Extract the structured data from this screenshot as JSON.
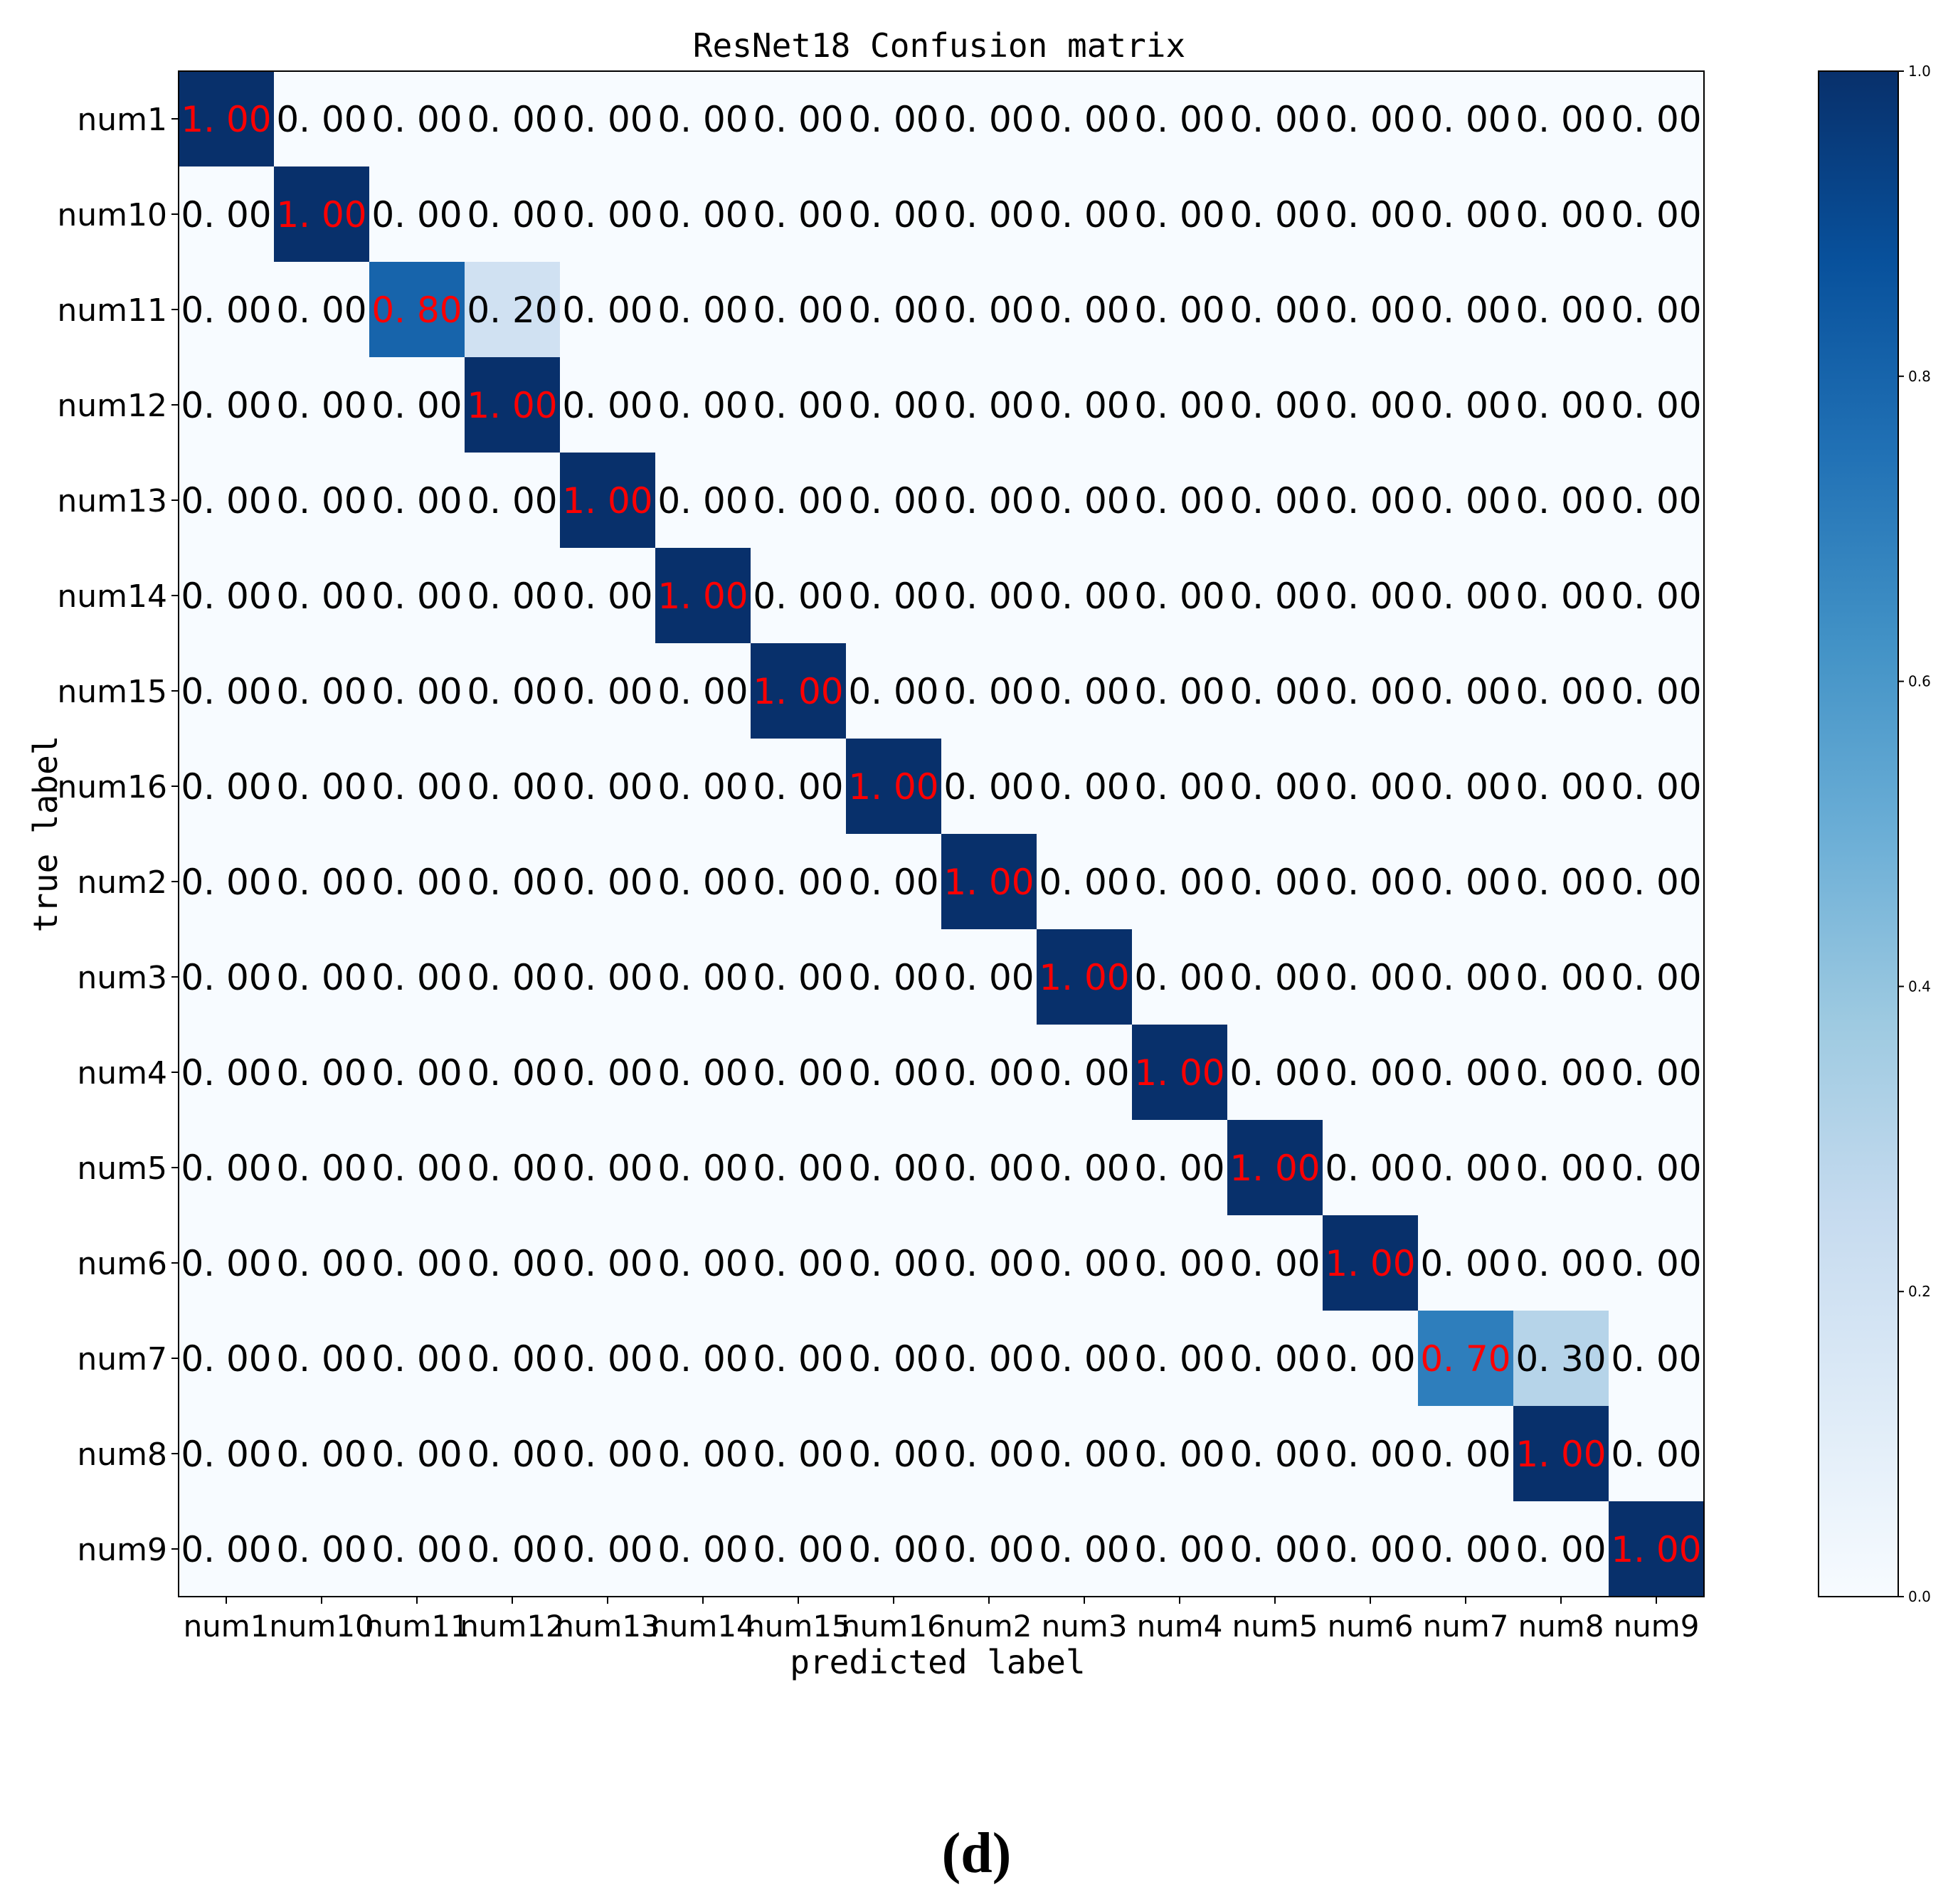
{
  "caption": "(d)",
  "chart_data": {
    "type": "heatmap",
    "title": "ResNet18 Confusion matrix",
    "xlabel": "predicted label",
    "ylabel": "true label",
    "x_categories": [
      "num1",
      "num10",
      "num11",
      "num12",
      "num13",
      "num14",
      "num15",
      "num16",
      "num2",
      "num3",
      "num4",
      "num5",
      "num6",
      "num7",
      "num8",
      "num9"
    ],
    "y_categories": [
      "num1",
      "num10",
      "num11",
      "num12",
      "num13",
      "num14",
      "num15",
      "num16",
      "num2",
      "num3",
      "num4",
      "num5",
      "num6",
      "num7",
      "num8",
      "num9"
    ],
    "values": [
      [
        1.0,
        0,
        0,
        0,
        0,
        0,
        0,
        0,
        0,
        0,
        0,
        0,
        0,
        0,
        0,
        0
      ],
      [
        0,
        1.0,
        0,
        0,
        0,
        0,
        0,
        0,
        0,
        0,
        0,
        0,
        0,
        0,
        0,
        0
      ],
      [
        0,
        0,
        0.8,
        0.2,
        0,
        0,
        0,
        0,
        0,
        0,
        0,
        0,
        0,
        0,
        0,
        0
      ],
      [
        0,
        0,
        0,
        1.0,
        0,
        0,
        0,
        0,
        0,
        0,
        0,
        0,
        0,
        0,
        0,
        0
      ],
      [
        0,
        0,
        0,
        0,
        1.0,
        0,
        0,
        0,
        0,
        0,
        0,
        0,
        0,
        0,
        0,
        0
      ],
      [
        0,
        0,
        0,
        0,
        0,
        1.0,
        0,
        0,
        0,
        0,
        0,
        0,
        0,
        0,
        0,
        0
      ],
      [
        0,
        0,
        0,
        0,
        0,
        0,
        1.0,
        0,
        0,
        0,
        0,
        0,
        0,
        0,
        0,
        0
      ],
      [
        0,
        0,
        0,
        0,
        0,
        0,
        0,
        1.0,
        0,
        0,
        0,
        0,
        0,
        0,
        0,
        0
      ],
      [
        0,
        0,
        0,
        0,
        0,
        0,
        0,
        0,
        1.0,
        0,
        0,
        0,
        0,
        0,
        0,
        0
      ],
      [
        0,
        0,
        0,
        0,
        0,
        0,
        0,
        0,
        0,
        1.0,
        0,
        0,
        0,
        0,
        0,
        0
      ],
      [
        0,
        0,
        0,
        0,
        0,
        0,
        0,
        0,
        0,
        0,
        1.0,
        0,
        0,
        0,
        0,
        0
      ],
      [
        0,
        0,
        0,
        0,
        0,
        0,
        0,
        0,
        0,
        0,
        0,
        1.0,
        0,
        0,
        0,
        0
      ],
      [
        0,
        0,
        0,
        0,
        0,
        0,
        0,
        0,
        0,
        0,
        0,
        0,
        1.0,
        0,
        0,
        0
      ],
      [
        0,
        0,
        0,
        0,
        0,
        0,
        0,
        0,
        0,
        0,
        0,
        0,
        0,
        0.7,
        0.3,
        0
      ],
      [
        0,
        0,
        0,
        0,
        0,
        0,
        0,
        0,
        0,
        0,
        0,
        0,
        0,
        0,
        1.0,
        0
      ],
      [
        0,
        0,
        0,
        0,
        0,
        0,
        0,
        0,
        0,
        0,
        0,
        0,
        0,
        0,
        0,
        1.0
      ]
    ],
    "value_format": "0. 00",
    "colormap": "Blues",
    "vmin": 0.0,
    "vmax": 1.0,
    "colorbar_ticks": [
      "0.0",
      "0.2",
      "0.4",
      "0.6",
      "0.8",
      "1.0"
    ],
    "label_color_diagonal": "#ff0000",
    "label_color_default": "#000000",
    "grid": false,
    "legend": "colorbar-right"
  }
}
